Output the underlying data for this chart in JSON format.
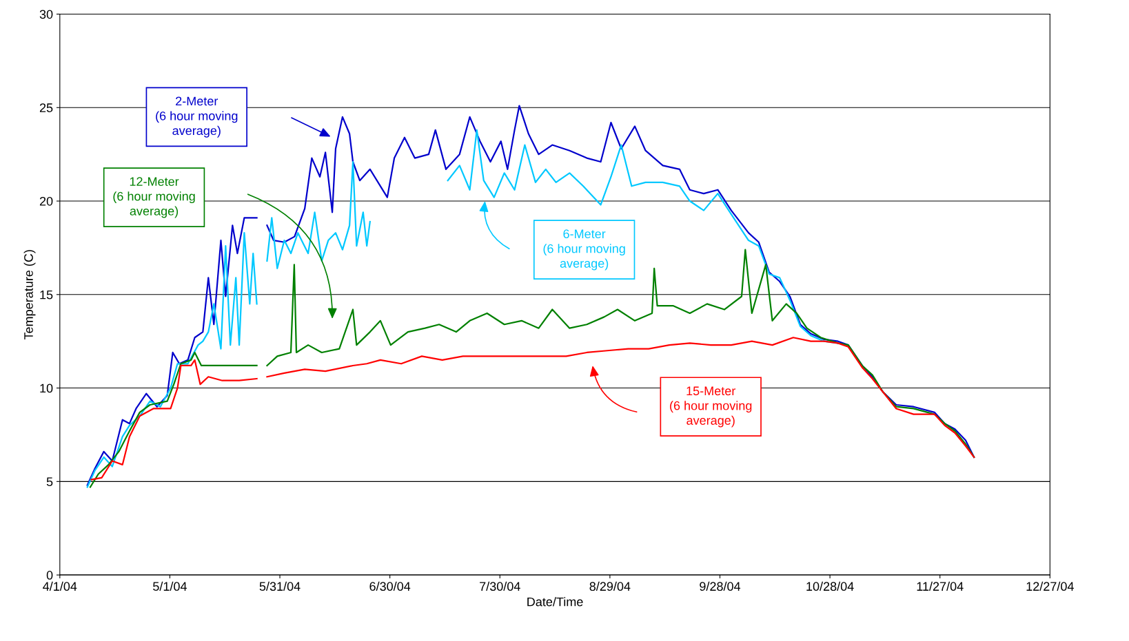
{
  "chart_data": {
    "type": "line",
    "xlabel": "Date/Time",
    "ylabel": "Temperature (C)",
    "xlim": [
      "2004-04-01",
      "2004-12-27"
    ],
    "xticks": [
      {
        "value": "2004-04-01",
        "label": "4/1/04"
      },
      {
        "value": "2004-05-01",
        "label": "5/1/04"
      },
      {
        "value": "2004-05-31",
        "label": "5/31/04"
      },
      {
        "value": "2004-06-30",
        "label": "6/30/04"
      },
      {
        "value": "2004-07-30",
        "label": "7/30/04"
      },
      {
        "value": "2004-08-29",
        "label": "8/29/04"
      },
      {
        "value": "2004-09-28",
        "label": "9/28/04"
      },
      {
        "value": "2004-10-28",
        "label": "10/28/04"
      },
      {
        "value": "2004-11-27",
        "label": "11/27/04"
      },
      {
        "value": "2004-12-27",
        "label": "12/27/04"
      }
    ],
    "ylim": [
      0,
      30
    ],
    "yticks": [
      0,
      5,
      10,
      15,
      20,
      25,
      30
    ],
    "grid": "y",
    "legend": false,
    "marker": "none",
    "line_style": "solid",
    "series": [
      {
        "name": "2-Meter\n(6 hour moving\naverage)",
        "color": "#0000cc",
        "x": [
          "2004-04-08T12:00",
          "2004-04-10T14:00",
          "2004-04-13T00:00",
          "2004-04-15T07:00",
          "2004-04-18T02:00",
          "2004-04-20T00:00",
          "2004-04-21T19:00",
          "2004-04-24T14:00",
          "2004-04-27T12:00",
          "2004-04-30T07:00",
          "2004-05-01T19:00",
          "2004-05-03T14:00",
          "2004-05-05T22:00",
          "2004-05-07T19:00",
          "2004-05-10T00:00",
          "2004-05-11T12:00",
          "2004-05-13T00:00",
          "2004-05-14T22:00",
          "2004-05-16T05:00",
          "2004-05-18T02:00",
          "2004-05-19T10:00",
          "2004-05-21T07:00",
          "2004-05-23T17:00",
          "2004-05-24T17:00",
          "2004-05-26T00:00",
          "2004-05-27T12:00",
          "2004-05-29T07:00",
          "2004-06-01T05:00",
          "2004-06-04T00:00",
          "2004-06-06T19:00",
          "2004-06-08T17:00",
          "2004-06-10T22:00",
          "2004-06-12T10:00",
          "2004-06-14T07:00",
          "2004-06-15T05:00",
          "2004-06-17T02:00",
          "2004-06-19T00:00",
          "2004-06-19T22:00",
          "2004-06-21T19:00",
          "2004-06-24T14:00",
          "2004-06-29T07:00",
          "2004-07-01T05:00",
          "2004-07-04T00:00",
          "2004-07-06T19:00",
          "2004-07-10T14:00",
          "2004-07-12T10:00",
          "2004-07-15T07:00",
          "2004-07-19T00:00",
          "2004-07-21T19:00",
          "2004-07-24T14:00",
          "2004-07-27T10:00",
          "2004-07-30T07:00",
          "2004-08-01T02:00",
          "2004-08-03T00:00",
          "2004-08-04T07:00",
          "2004-08-06T19:00",
          "2004-08-09T14:00",
          "2004-08-13T07:00",
          "2004-08-18T00:00",
          "2004-08-22T17:00",
          "2004-08-26T12:00",
          "2004-08-29T07:00",
          "2004-09-01T02:00",
          "2004-09-04T19:00",
          "2004-09-07T17:00",
          "2004-09-12T10:00",
          "2004-09-17T00:00",
          "2004-09-19T19:00",
          "2004-09-23T14:00",
          "2004-09-27T10:00",
          "2004-10-01T02:00",
          "2004-10-05T19:00",
          "2004-10-08T14:00",
          "2004-10-11T10:00",
          "2004-10-14T07:00",
          "2004-10-17T02:00",
          "2004-10-19T22:00",
          "2004-10-22T19:00",
          "2004-10-26T10:00",
          "2004-10-30T05:00",
          "2004-11-02T00:00",
          "2004-11-05T19:00",
          "2004-11-08T14:00",
          "2004-11-11T10:00",
          "2004-11-15T02:00",
          "2004-11-19T19:00",
          "2004-11-25T12:00",
          "2004-11-28T07:00",
          "2004-12-01T02:00",
          "2004-12-04T00:00",
          "2004-12-06T07:00"
        ],
        "values": [
          4.8,
          5.7,
          6.6,
          6.1,
          8.3,
          8.1,
          8.9,
          9.7,
          9.0,
          9.6,
          11.9,
          11.3,
          11.5,
          12.7,
          13,
          15.9,
          13.4,
          17.9,
          14.9,
          18.7,
          17.2,
          19.1,
          19.1,
          19.1,
          null,
          18.7,
          17.9,
          17.8,
          18.1,
          19.6,
          22.3,
          21.3,
          22.6,
          19.4,
          22.8,
          24.5,
          23.6,
          22.1,
          21.1,
          21.7,
          20.2,
          22.3,
          23.4,
          22.3,
          22.5,
          23.8,
          21.7,
          22.5,
          24.5,
          23.2,
          22.1,
          23.2,
          21.7,
          23.8,
          25.1,
          23.6,
          22.5,
          23.0,
          22.7,
          22.3,
          22.1,
          24.2,
          22.8,
          24.0,
          22.7,
          21.9,
          21.7,
          20.6,
          20.4,
          20.6,
          19.5,
          18.3,
          17.8,
          16.2,
          15.7,
          14.9,
          13.4,
          12.9,
          12.6,
          12.5,
          12.3,
          11.2,
          10.6,
          9.8,
          9.1,
          9.0,
          8.7,
          8.1,
          7.8,
          7.2,
          6.3
        ]
      },
      {
        "name": "6-Meter\n(6 hour moving\naverage)",
        "color": "#00c8ff",
        "x": [
          "2004-04-08T12:00",
          "2004-04-10T14:00",
          "2004-04-13T00:00",
          "2004-04-15T07:00",
          "2004-04-18T02:00",
          "2004-04-20T00:00",
          "2004-04-22T19:00",
          "2004-04-25T14:00",
          "2004-04-28T10:00",
          "2004-05-01T05:00",
          "2004-05-03T02:00",
          "2004-05-05T22:00",
          "2004-05-08T17:00",
          "2004-05-10T00:00",
          "2004-05-11T12:00",
          "2004-05-13T00:00",
          "2004-05-14T22:00",
          "2004-05-16T05:00",
          "2004-05-17T12:00",
          "2004-05-19T00:00",
          "2004-05-19T22:00",
          "2004-05-21T07:00",
          "2004-05-22T19:00",
          "2004-05-23T17:00",
          "2004-05-24T17:00",
          "2004-05-26T00:00",
          "2004-05-27T12:00",
          "2004-05-28T19:00",
          "2004-05-30T07:00",
          "2004-06-01T05:00",
          "2004-06-03T00:00",
          "2004-06-04T22:00",
          "2004-06-07T17:00",
          "2004-06-09T12:00",
          "2004-06-11T10:00",
          "2004-06-13T05:00",
          "2004-06-15T05:00",
          "2004-06-17T02:00",
          "2004-06-19T00:00",
          "2004-06-19T22:00",
          "2004-06-20T22:00",
          "2004-06-22T17:00",
          "2004-06-23T17:00",
          "2004-06-24T14:00",
          "2004-07-05T00:00",
          "2004-07-15T19:00",
          "2004-07-19T00:00",
          "2004-07-21T19:00",
          "2004-07-23T17:00",
          "2004-07-25T14:00",
          "2004-07-28T10:00",
          "2004-07-31T05:00",
          "2004-08-03T00:00",
          "2004-08-05T19:00",
          "2004-08-08T17:00",
          "2004-08-11T12:00",
          "2004-08-14T07:00",
          "2004-08-18T00:00",
          "2004-08-21T17:00",
          "2004-08-26T12:00",
          "2004-08-29T07:00",
          "2004-09-01T02:00",
          "2004-09-03T22:00",
          "2004-09-07T17:00",
          "2004-09-12T10:00",
          "2004-09-17T00:00",
          "2004-09-19T19:00",
          "2004-09-23T14:00",
          "2004-09-27T10:00",
          "2004-10-01T02:00",
          "2004-10-05T19:00",
          "2004-10-08T14:00",
          "2004-10-11T10:00",
          "2004-10-14T07:00",
          "2004-10-17T02:00",
          "2004-10-19T22:00",
          "2004-10-22T19:00",
          "2004-10-26T10:00",
          "2004-10-30T05:00"
        ],
        "values": [
          4.7,
          5.6,
          6.3,
          5.8,
          7.4,
          8.0,
          8.5,
          9.3,
          9.0,
          10.0,
          11.3,
          11.3,
          12.3,
          12.5,
          13.0,
          14.5,
          12.1,
          17.6,
          12.3,
          15.9,
          12.3,
          18.3,
          14.5,
          17.2,
          14.5,
          null,
          16.8,
          19.1,
          16.4,
          17.9,
          17.2,
          18.3,
          17.2,
          19.4,
          16.8,
          17.9,
          18.3,
          17.4,
          18.7,
          22.1,
          17.6,
          19.4,
          17.6,
          18.9,
          null,
          21.1,
          21.9,
          20.6,
          23.8,
          21.1,
          20.2,
          21.5,
          20.6,
          23.0,
          21.0,
          21.7,
          21.0,
          21.5,
          20.8,
          19.8,
          21.3,
          23.0,
          20.8,
          21.0,
          21.0,
          20.8,
          20.0,
          19.5,
          20.4,
          19.3,
          17.9,
          17.6,
          16.1,
          15.9,
          14.7,
          13.3,
          12.8,
          12.5,
          12.4
        ]
      },
      {
        "name": "12-Meter\n(6 hour moving\naverage)",
        "color": "#008000",
        "x": [
          "2004-04-09T07:00",
          "2004-04-11T12:00",
          "2004-04-14T07:00",
          "2004-04-17T02:00",
          "2004-04-20T00:00",
          "2004-04-22T19:00",
          "2004-04-25T14:00",
          "2004-04-30T07:00",
          "2004-05-02T02:00",
          "2004-05-04T00:00",
          "2004-05-06T19:00",
          "2004-05-07T19:00",
          "2004-05-09T14:00",
          "2004-05-13T10:00",
          "2004-05-17T05:00",
          "2004-05-20T22:00",
          "2004-05-24T17:00",
          "2004-05-26T00:00",
          "2004-05-27T12:00",
          "2004-05-30T07:00",
          "2004-06-03T00:00",
          "2004-06-03T22:00",
          "2004-06-04T12:00",
          "2004-06-07T17:00",
          "2004-06-11T10:00",
          "2004-06-16T05:00",
          "2004-06-19T22:00",
          "2004-06-20T22:00",
          "2004-06-24T14:00",
          "2004-06-27T10:00",
          "2004-06-30T05:00",
          "2004-07-04T22:00",
          "2004-07-09T14:00",
          "2004-07-13T10:00",
          "2004-07-18T02:00",
          "2004-07-21T19:00",
          "2004-07-26T12:00",
          "2004-07-31T05:00",
          "2004-08-04T22:00",
          "2004-08-09T14:00",
          "2004-08-13T07:00",
          "2004-08-18T00:00",
          "2004-08-22T17:00",
          "2004-08-27T10:00",
          "2004-08-31T02:00",
          "2004-09-04T19:00",
          "2004-09-09T12:00",
          "2004-09-10T02:00",
          "2004-09-10T22:00",
          "2004-09-15T05:00",
          "2004-09-19T19:00",
          "2004-09-24T12:00",
          "2004-09-29T05:00",
          "2004-10-03T22:00",
          "2004-10-04T22:00",
          "2004-10-06T17:00",
          "2004-10-10T12:00",
          "2004-10-12T07:00",
          "2004-10-16T02:00",
          "2004-10-18T22:00",
          "2004-10-21T17:00",
          "2004-10-25T12:00",
          "2004-10-30T05:00",
          "2004-11-02T00:00",
          "2004-11-05T19:00",
          "2004-11-08T14:00",
          "2004-11-11T10:00",
          "2004-11-15T02:00",
          "2004-11-19T19:00",
          "2004-11-25T12:00",
          "2004-11-28T07:00",
          "2004-12-01T02:00",
          "2004-12-04T00:00",
          "2004-12-06T07:00"
        ],
        "values": [
          4.7,
          5.4,
          5.9,
          6.6,
          7.7,
          8.7,
          9.1,
          9.3,
          10.2,
          11.3,
          11.5,
          11.9,
          11.2,
          11.2,
          11.2,
          11.2,
          11.2,
          null,
          11.2,
          11.7,
          11.9,
          16.6,
          11.9,
          12.3,
          11.9,
          12.1,
          14.2,
          12.3,
          13.0,
          13.6,
          12.3,
          13.0,
          13.2,
          13.4,
          13.0,
          13.6,
          14.0,
          13.4,
          13.6,
          13.2,
          14.2,
          13.2,
          13.4,
          13.8,
          14.2,
          13.6,
          14.0,
          16.4,
          14.4,
          14.4,
          14.0,
          14.5,
          14.2,
          14.9,
          17.4,
          14.0,
          16.6,
          13.6,
          14.5,
          14.0,
          13.2,
          12.7,
          12.4,
          12.3,
          11.2,
          10.7,
          9.8,
          9.0,
          8.9,
          8.6,
          8.1,
          7.7,
          7.0,
          6.3
        ]
      },
      {
        "name": "15-Meter\n(6 hour moving\naverage)",
        "color": "#ff0000",
        "x": [
          "2004-04-09T14:00",
          "2004-04-12T10:00",
          "2004-04-15T07:00",
          "2004-04-18T02:00",
          "2004-04-20T00:00",
          "2004-04-22T19:00",
          "2004-04-26T12:00",
          "2004-05-01T05:00",
          "2004-05-03T02:00",
          "2004-05-04T00:00",
          "2004-05-06T19:00",
          "2004-05-07T19:00",
          "2004-05-09T07:00",
          "2004-05-11T12:00",
          "2004-05-15T07:00",
          "2004-05-19T22:00",
          "2004-05-24T17:00",
          "2004-05-26T00:00",
          "2004-05-27T12:00",
          "2004-06-01T05:00",
          "2004-06-06T19:00",
          "2004-06-12T10:00",
          "2004-06-19T22:00",
          "2004-06-23T17:00",
          "2004-06-27T10:00",
          "2004-07-03T02:00",
          "2004-07-08T17:00",
          "2004-07-14T07:00",
          "2004-07-19T22:00",
          "2004-07-25T14:00",
          "2004-07-31T05:00",
          "2004-08-05T19:00",
          "2004-08-11T12:00",
          "2004-08-17T02:00",
          "2004-08-22T17:00",
          "2004-08-28T07:00",
          "2004-09-03T00:00",
          "2004-09-08T14:00",
          "2004-09-14T05:00",
          "2004-09-19T19:00",
          "2004-09-25T12:00",
          "2004-10-01T02:00",
          "2004-10-06T17:00",
          "2004-10-12T07:00",
          "2004-10-18T00:00",
          "2004-10-22T19:00",
          "2004-10-26T10:00",
          "2004-10-30T05:00",
          "2004-11-02T00:00",
          "2004-11-05T19:00",
          "2004-11-08T14:00",
          "2004-11-11T10:00",
          "2004-11-15T02:00",
          "2004-11-19T19:00",
          "2004-11-25T12:00",
          "2004-11-28T07:00",
          "2004-12-01T02:00",
          "2004-12-04T00:00",
          "2004-12-06T07:00"
        ],
        "values": [
          5.1,
          5.2,
          6.1,
          5.9,
          7.4,
          8.5,
          8.9,
          8.9,
          10.0,
          11.2,
          11.2,
          11.5,
          10.2,
          10.6,
          10.4,
          10.4,
          10.5,
          null,
          10.6,
          10.8,
          11.0,
          10.9,
          11.2,
          11.3,
          11.5,
          11.3,
          11.7,
          11.5,
          11.7,
          11.7,
          11.7,
          11.7,
          11.7,
          11.7,
          11.9,
          12.0,
          12.1,
          12.1,
          12.3,
          12.4,
          12.3,
          12.3,
          12.5,
          12.3,
          12.7,
          12.5,
          12.5,
          12.4,
          12.2,
          11.1,
          10.5,
          9.8,
          8.9,
          8.6,
          8.6,
          8.0,
          7.6,
          6.9,
          6.3
        ]
      }
    ]
  }
}
